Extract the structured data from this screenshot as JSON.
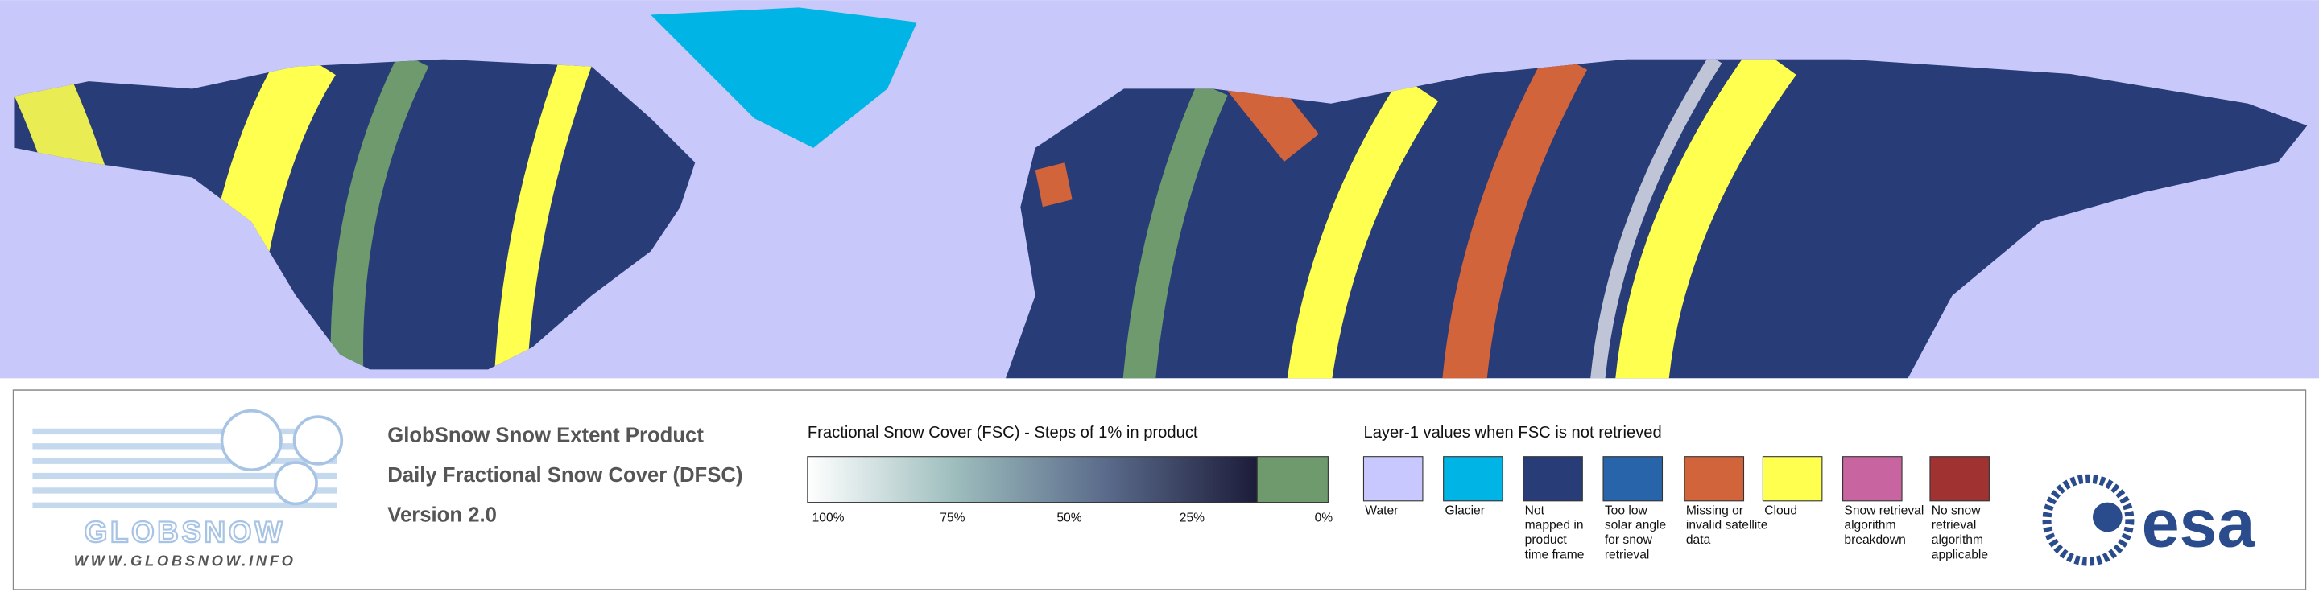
{
  "header": {
    "title": "GlobSnow Snow Extent Product",
    "subtitle": "Daily Fractional Snow Cover (DFSC)",
    "version": "Version 2.0"
  },
  "logo": {
    "name": "GLOBSNOW",
    "url": "WWW.GLOBSNOW.INFO",
    "agency": "esa"
  },
  "fsc_legend": {
    "title": "Fractional Snow Cover (FSC) - Steps of 1% in product",
    "tick_labels": [
      "100%",
      "75%",
      "50%",
      "25%",
      "0%"
    ],
    "gradient_colors": [
      "#ffffff",
      "#9cbcbc",
      "#5a6a8a",
      "#1c1c3a"
    ],
    "zero_color": "#6e9a6e"
  },
  "layer_legend": {
    "title": "Layer-1 values when FSC is not retrieved",
    "items": [
      {
        "color": "#c8c8ff",
        "lines": [
          "Water"
        ]
      },
      {
        "color": "#00b4e6",
        "lines": [
          "Glacier"
        ]
      },
      {
        "color": "#283c78",
        "lines": [
          "Not",
          "mapped in",
          "product",
          "time frame"
        ]
      },
      {
        "color": "#2864aa",
        "lines": [
          "Too low",
          "solar angle",
          "for snow",
          "retrieval"
        ]
      },
      {
        "color": "#d2643c",
        "lines": [
          "Missing or",
          "invalid satellite",
          "data"
        ]
      },
      {
        "color": "#ffff50",
        "lines": [
          "Cloud"
        ]
      },
      {
        "color": "#c864a0",
        "lines": [
          "Snow retrieval",
          "algorithm",
          "breakdown"
        ]
      },
      {
        "color": "#a03232",
        "lines": [
          "No snow",
          "retrieval",
          "algorithm",
          "applicable"
        ]
      }
    ]
  }
}
